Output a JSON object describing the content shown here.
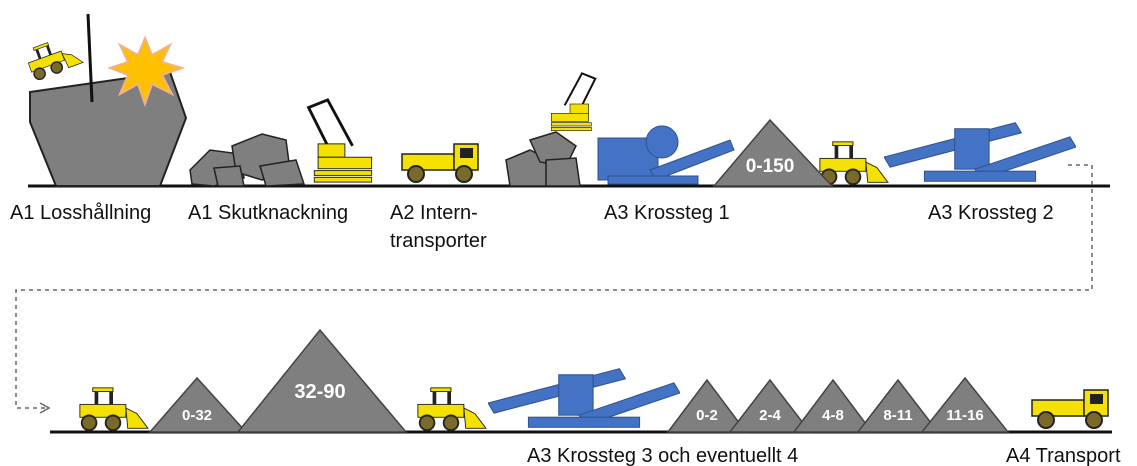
{
  "labels": [
    "A1 Losshållning",
    "A1 Skutknackning",
    "A2 Intern-",
    "transporter",
    "A3 Krossteg 1",
    "A3 Krossteg 2",
    "A3 Krossteg 3 och eventuellt 4",
    "A4 Transport"
  ],
  "piles": [
    "0-150",
    "0-32",
    "32-90",
    "0-2",
    "2-4",
    "4-8",
    "8-11",
    "11-16"
  ]
}
